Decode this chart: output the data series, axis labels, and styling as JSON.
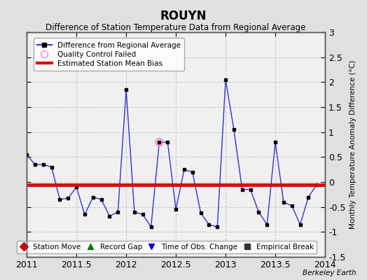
{
  "title": "ROUYN",
  "subtitle": "Difference of Station Temperature Data from Regional Average",
  "ylabel": "Monthly Temperature Anomaly Difference (°C)",
  "watermark": "Berkeley Earth",
  "xlim": [
    2011.0,
    2014.0
  ],
  "ylim": [
    -1.5,
    3.0
  ],
  "yticks": [
    -1.5,
    -1.0,
    -0.5,
    0.0,
    0.5,
    1.0,
    1.5,
    2.0,
    2.5,
    3.0
  ],
  "xticks": [
    2011,
    2011.5,
    2012,
    2012.5,
    2013,
    2013.5,
    2014
  ],
  "xtick_labels": [
    "2011",
    "2011.5",
    "2012",
    "2012.5",
    "2013",
    "2013.5",
    "2014"
  ],
  "mean_bias": -0.05,
  "line_color": "#3333cc",
  "bias_color": "#dd0000",
  "marker_color": "#000000",
  "qc_fail_color": "#ff88cc",
  "fig_bg": "#e0e0e0",
  "plot_bg": "#f0f0f0",
  "data_x": [
    2011.0,
    2011.083,
    2011.167,
    2011.25,
    2011.333,
    2011.417,
    2011.5,
    2011.583,
    2011.667,
    2011.75,
    2011.833,
    2011.917,
    2012.0,
    2012.083,
    2012.167,
    2012.25,
    2012.333,
    2012.417,
    2012.5,
    2012.583,
    2012.667,
    2012.75,
    2012.833,
    2012.917,
    2013.0,
    2013.083,
    2013.167,
    2013.25,
    2013.333,
    2013.417,
    2013.5,
    2013.583,
    2013.667,
    2013.75,
    2013.833,
    2013.917
  ],
  "data_y": [
    0.55,
    0.35,
    0.35,
    0.3,
    -0.35,
    -0.32,
    -0.1,
    -0.65,
    -0.3,
    -0.35,
    -0.68,
    -0.6,
    1.85,
    -0.6,
    -0.65,
    -0.9,
    0.8,
    0.8,
    -0.55,
    0.25,
    0.2,
    -0.62,
    -0.85,
    -0.9,
    2.05,
    1.05,
    -0.15,
    -0.15,
    -0.6,
    -0.85,
    0.8,
    -0.4,
    -0.48,
    -0.85,
    -0.3,
    -0.05
  ],
  "qc_fail_x": [
    2012.333
  ],
  "qc_fail_y": [
    0.8
  ]
}
